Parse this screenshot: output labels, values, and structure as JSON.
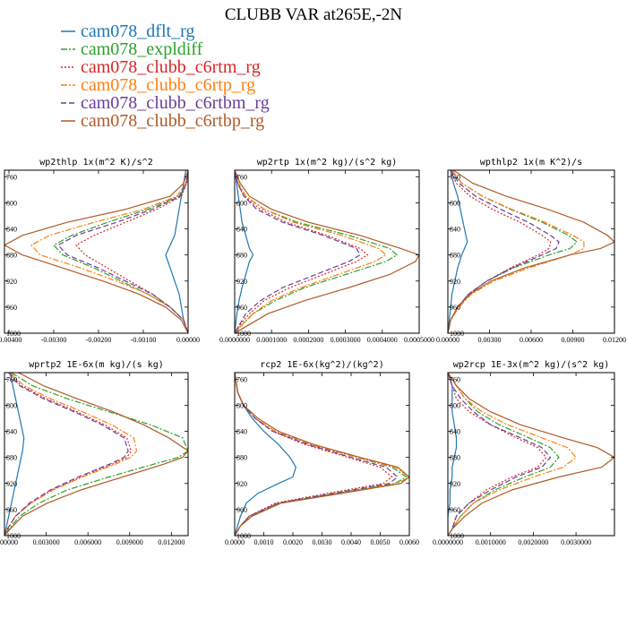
{
  "figure": {
    "title": "CLUBB VAR at265E,-2N"
  },
  "colors": {
    "dflt": "#1f77b4",
    "expldiff": "#2ca02c",
    "c6rtm": "#d62728",
    "c6rtp": "#ff7f0e",
    "c6rtbm": "#6a3d9a",
    "c6rtbp": "#b05a28"
  },
  "legend": [
    {
      "label": "cam078_dflt_rg",
      "color": "#1f77b4",
      "dash": "solid"
    },
    {
      "label": "cam078_expldiff",
      "color": "#2ca02c",
      "dash": "dashdot"
    },
    {
      "label": "cam078_clubb_c6rtm_rg",
      "color": "#d62728",
      "dash": "dotted"
    },
    {
      "label": "cam078_clubb_c6rtp_rg",
      "color": "#ff7f0e",
      "dash": "dashdot"
    },
    {
      "label": "cam078_clubb_c6rtbm_rg",
      "color": "#6a3d9a",
      "dash": "dashed"
    },
    {
      "label": "cam078_clubb_c6rtbp_rg",
      "color": "#b05a28",
      "dash": "solid"
    }
  ],
  "chart_data": [
    {
      "type": "line",
      "title": "wp2thlp  1x(m^2 K)/s^2",
      "xlim": [
        -0.0041,
        0.0
      ],
      "ylim": [
        1000,
        750
      ],
      "yticks": [
        760,
        800,
        840,
        880,
        920,
        960,
        1000
      ],
      "xticks": [
        -0.004,
        -0.003,
        -0.002,
        -0.001,
        0.0
      ],
      "xtick_labels": [
        "-0.00400",
        "-0.00300",
        "-0.00200",
        "-0.00100",
        "0.00000"
      ],
      "y": [
        750,
        770,
        790,
        810,
        830,
        850,
        865,
        880,
        900,
        920,
        940,
        960,
        980,
        1000
      ],
      "series": [
        {
          "name": "cam078_dflt_rg",
          "x": [
            -5e-05,
            -0.0001,
            -0.00015,
            -0.0002,
            -0.00025,
            -0.0003,
            -0.0004,
            -0.0005,
            -0.0004,
            -0.0003,
            -0.0002,
            -0.00015,
            -0.0001,
            0.0
          ]
        },
        {
          "name": "cam078_expldiff",
          "x": [
            0.0,
            -5e-05,
            -0.0002,
            -0.0009,
            -0.0018,
            -0.0026,
            -0.003,
            -0.0028,
            -0.0021,
            -0.0015,
            -0.0009,
            -0.0004,
            -0.0001,
            0.0
          ]
        },
        {
          "name": "cam078_clubb_c6rtm_rg",
          "x": [
            0.0,
            -3e-05,
            -0.00015,
            -0.0007,
            -0.0014,
            -0.0021,
            -0.0025,
            -0.0023,
            -0.0018,
            -0.0013,
            -0.0008,
            -0.0004,
            -0.0001,
            0.0
          ]
        },
        {
          "name": "cam078_clubb_c6rtp_rg",
          "x": [
            0.0,
            -5e-05,
            -0.00025,
            -0.001,
            -0.0021,
            -0.0031,
            -0.0035,
            -0.0033,
            -0.0024,
            -0.0016,
            -0.0009,
            -0.0004,
            -0.0001,
            0.0
          ]
        },
        {
          "name": "cam078_clubb_c6rtbm_rg",
          "x": [
            0.0,
            -4e-05,
            -0.00018,
            -0.0008,
            -0.0016,
            -0.0025,
            -0.0029,
            -0.0027,
            -0.002,
            -0.0014,
            -0.0008,
            -0.0004,
            -0.0001,
            0.0
          ]
        },
        {
          "name": "cam078_clubb_c6rtbp_rg",
          "x": [
            0.0,
            -0.0001,
            -0.0004,
            -0.0014,
            -0.0027,
            -0.0037,
            -0.0041,
            -0.0037,
            -0.0028,
            -0.0019,
            -0.0011,
            -0.0005,
            -0.00015,
            0.0
          ]
        }
      ]
    },
    {
      "type": "line",
      "title": "wp2rtp  1x(m^2 kg)/(s^2 kg)",
      "xlim": [
        0.0,
        0.0005
      ],
      "ylim": [
        1000,
        750
      ],
      "yticks": [
        760,
        800,
        840,
        880,
        920,
        960,
        1000
      ],
      "xticks": [
        0.0,
        0.0001,
        0.0002,
        0.0003,
        0.0004,
        0.0005
      ],
      "xtick_labels": [
        "0.0000000",
        "0.0001000",
        "0.0002000",
        "0.0003000",
        "0.0004000",
        "0.0005000"
      ],
      "y": [
        750,
        770,
        790,
        810,
        830,
        850,
        870,
        880,
        890,
        910,
        930,
        950,
        970,
        990,
        1000
      ],
      "series": [
        {
          "name": "cam078_dflt_rg",
          "x": [
            0.0,
            5e-06,
            1e-05,
            1.5e-05,
            2e-05,
            3e-05,
            4e-05,
            5e-05,
            4e-05,
            3e-05,
            2e-05,
            1.2e-05,
            6e-06,
            2e-06,
            0.0
          ]
        },
        {
          "name": "cam078_expldiff",
          "x": [
            0.0,
            1e-05,
            3e-05,
            8e-05,
            0.00017,
            0.00031,
            0.00042,
            0.00044,
            0.00041,
            0.0003,
            0.00019,
            0.00011,
            5e-05,
            1.5e-05,
            0.0
          ]
        },
        {
          "name": "cam078_clubb_c6rtm_rg",
          "x": [
            0.0,
            8e-06,
            2.5e-05,
            7e-05,
            0.00014,
            0.00025,
            0.00034,
            0.00036,
            0.00033,
            0.00024,
            0.00015,
            8e-05,
            4e-05,
            1e-05,
            0.0
          ]
        },
        {
          "name": "cam078_clubb_c6rtp_rg",
          "x": [
            0.0,
            1e-05,
            3e-05,
            8e-05,
            0.00016,
            0.00029,
            0.00039,
            0.00041,
            0.00038,
            0.00028,
            0.00018,
            0.0001,
            5e-05,
            1.5e-05,
            0.0
          ]
        },
        {
          "name": "cam078_clubb_c6rtbm_rg",
          "x": [
            0.0,
            8e-06,
            2.5e-05,
            6e-05,
            0.00013,
            0.00024,
            0.00033,
            0.00034,
            0.00031,
            0.00022,
            0.00013,
            7e-05,
            3e-05,
            1e-05,
            0.0
          ]
        },
        {
          "name": "cam078_clubb_c6rtbp_rg",
          "x": [
            0.0,
            1.5e-05,
            4e-05,
            0.0001,
            0.0002,
            0.00034,
            0.00045,
            0.0005,
            0.00049,
            0.00042,
            0.00031,
            0.00019,
            9e-05,
            3e-05,
            0.0
          ]
        }
      ]
    },
    {
      "type": "line",
      "title": "wpthlp2  1x(m K^2)/s",
      "xlim": [
        0.0,
        0.012
      ],
      "ylim": [
        1000,
        750
      ],
      "yticks": [
        760,
        800,
        840,
        880,
        920,
        960,
        1000
      ],
      "xticks": [
        0.0,
        0.003,
        0.006,
        0.009,
        0.012
      ],
      "xtick_labels": [
        "0.00000",
        "0.00300",
        "0.00600",
        "0.00900",
        "0.01200"
      ],
      "y": [
        750,
        770,
        790,
        810,
        830,
        850,
        860,
        870,
        880,
        900,
        920,
        940,
        960,
        980,
        1000
      ],
      "series": [
        {
          "name": "cam078_dflt_rg",
          "x": [
            0.0002,
            0.0004,
            0.0007,
            0.0009,
            0.0011,
            0.0013,
            0.0014,
            0.0012,
            0.001,
            0.0007,
            0.0005,
            0.0003,
            0.0002,
            0.0001,
            0.0
          ]
        },
        {
          "name": "cam078_expldiff",
          "x": [
            0.0003,
            0.001,
            0.0025,
            0.0045,
            0.0068,
            0.0087,
            0.0093,
            0.0088,
            0.0073,
            0.0047,
            0.0028,
            0.0015,
            0.0007,
            0.0002,
            0.0
          ]
        },
        {
          "name": "cam078_clubb_c6rtm_rg",
          "x": [
            0.0002,
            0.0006,
            0.0016,
            0.0032,
            0.0052,
            0.0068,
            0.0074,
            0.0073,
            0.0065,
            0.0045,
            0.0028,
            0.0015,
            0.0007,
            0.0002,
            0.0
          ]
        },
        {
          "name": "cam078_clubb_c6rtp_rg",
          "x": [
            0.0003,
            0.001,
            0.0025,
            0.0046,
            0.007,
            0.009,
            0.0098,
            0.0098,
            0.0088,
            0.0058,
            0.0033,
            0.0017,
            0.0008,
            0.0002,
            0.0
          ]
        },
        {
          "name": "cam078_clubb_c6rtbm_rg",
          "x": [
            0.0002,
            0.0008,
            0.002,
            0.0038,
            0.0058,
            0.0074,
            0.008,
            0.0078,
            0.0068,
            0.0046,
            0.0028,
            0.0015,
            0.0007,
            0.0002,
            0.0
          ]
        },
        {
          "name": "cam078_clubb_c6rtbp_rg",
          "x": [
            0.0004,
            0.0018,
            0.0042,
            0.0072,
            0.0098,
            0.0115,
            0.012,
            0.011,
            0.0088,
            0.0055,
            0.0031,
            0.0016,
            0.0007,
            0.0002,
            0.0
          ]
        }
      ]
    },
    {
      "type": "line",
      "title": "wprtp2  1E-6x(m kg)/(s kg)",
      "xlim": [
        0.0,
        0.0132
      ],
      "ylim": [
        1000,
        750
      ],
      "yticks": [
        760,
        800,
        840,
        880,
        920,
        960,
        1000
      ],
      "xticks": [
        0.0,
        0.003,
        0.006,
        0.009,
        0.012
      ],
      "xtick_labels": [
        "0.000000",
        "0.003000",
        "0.006000",
        "0.009000",
        "0.012000"
      ],
      "y": [
        750,
        770,
        790,
        810,
        830,
        850,
        870,
        880,
        890,
        910,
        930,
        950,
        970,
        990,
        1000
      ],
      "series": [
        {
          "name": "cam078_dflt_rg",
          "x": [
            0.0004,
            0.0006,
            0.0008,
            0.001,
            0.0012,
            0.0014,
            0.0013,
            0.0012,
            0.0011,
            0.0009,
            0.0007,
            0.0005,
            0.0003,
            0.0001,
            0.0
          ]
        },
        {
          "name": "cam078_expldiff",
          "x": [
            0.0005,
            0.002,
            0.0045,
            0.0075,
            0.0105,
            0.0128,
            0.0132,
            0.0125,
            0.0108,
            0.0075,
            0.0045,
            0.0025,
            0.0011,
            0.0003,
            0.0
          ]
        },
        {
          "name": "cam078_clubb_c6rtm_rg",
          "x": [
            0.0003,
            0.0012,
            0.003,
            0.0052,
            0.0072,
            0.0088,
            0.0091,
            0.0088,
            0.0078,
            0.0055,
            0.0034,
            0.0019,
            0.0008,
            0.0002,
            0.0
          ]
        },
        {
          "name": "cam078_clubb_c6rtp_rg",
          "x": [
            0.0004,
            0.0014,
            0.0033,
            0.0056,
            0.0077,
            0.0093,
            0.0095,
            0.0091,
            0.008,
            0.0056,
            0.0035,
            0.0019,
            0.0008,
            0.0002,
            0.0
          ]
        },
        {
          "name": "cam078_clubb_c6rtbm_rg",
          "x": [
            0.0003,
            0.0011,
            0.0028,
            0.005,
            0.007,
            0.0086,
            0.0089,
            0.0086,
            0.0076,
            0.0053,
            0.0033,
            0.0018,
            0.0008,
            0.0002,
            0.0
          ]
        },
        {
          "name": "cam078_clubb_c6rtbp_rg",
          "x": [
            0.001,
            0.0028,
            0.0052,
            0.0078,
            0.01,
            0.0118,
            0.0132,
            0.0128,
            0.0115,
            0.0085,
            0.0055,
            0.0031,
            0.0013,
            0.0004,
            0.0
          ]
        }
      ]
    },
    {
      "type": "line",
      "title": "rcp2  1E-6x(kg^2)/(kg^2)",
      "xlim": [
        0.0,
        0.006
      ],
      "ylim": [
        1000,
        750
      ],
      "yticks": [
        760,
        800,
        840,
        880,
        920,
        960,
        1000
      ],
      "xticks": [
        0.0,
        0.001,
        0.002,
        0.003,
        0.004,
        0.005,
        0.006
      ],
      "xtick_labels": [
        "0.0000",
        "0.0010",
        "0.0020",
        "0.0030",
        "0.0040",
        "0.0050",
        "0.0060"
      ],
      "y": [
        750,
        780,
        800,
        820,
        840,
        860,
        880,
        895,
        910,
        920,
        935,
        950,
        970,
        985,
        1000
      ],
      "series": [
        {
          "name": "cam078_dflt_rg",
          "x": [
            0.0,
            0.0001,
            0.0003,
            0.0006,
            0.001,
            0.0015,
            0.0019,
            0.0021,
            0.002,
            0.0015,
            0.0008,
            0.0004,
            0.0002,
            0.0001,
            0.0
          ]
        },
        {
          "name": "cam078_expldiff",
          "x": [
            0.0,
            0.0001,
            0.0003,
            0.0007,
            0.0014,
            0.0026,
            0.0042,
            0.0054,
            0.0059,
            0.0055,
            0.0035,
            0.0015,
            0.0005,
            0.0002,
            0.0
          ]
        },
        {
          "name": "cam078_clubb_c6rtm_rg",
          "x": [
            0.0,
            0.0001,
            0.0003,
            0.0007,
            0.0013,
            0.0024,
            0.0039,
            0.005,
            0.0054,
            0.0051,
            0.0032,
            0.0014,
            0.0005,
            0.0002,
            0.0
          ]
        },
        {
          "name": "cam078_clubb_c6rtp_rg",
          "x": [
            0.0,
            0.0001,
            0.0003,
            0.0007,
            0.0014,
            0.0026,
            0.0042,
            0.0055,
            0.006,
            0.0056,
            0.0036,
            0.0016,
            0.0006,
            0.0002,
            0.0
          ]
        },
        {
          "name": "cam078_clubb_c6rtbm_rg",
          "x": [
            0.0,
            0.0001,
            0.0003,
            0.0007,
            0.0013,
            0.0025,
            0.004,
            0.0052,
            0.0056,
            0.0053,
            0.0034,
            0.0015,
            0.0005,
            0.0002,
            0.0
          ]
        },
        {
          "name": "cam078_clubb_c6rtbp_rg",
          "x": [
            0.0,
            0.0001,
            0.0003,
            0.0008,
            0.0015,
            0.0027,
            0.0043,
            0.0056,
            0.006,
            0.0057,
            0.0037,
            0.0016,
            0.0006,
            0.0002,
            0.0
          ]
        }
      ]
    },
    {
      "type": "line",
      "title": "wp2rcp  1E-3x(m^2 kg)/(s^2 kg)",
      "xlim": [
        0.0,
        0.0039
      ],
      "ylim": [
        1000,
        750
      ],
      "yticks": [
        760,
        800,
        840,
        880,
        920,
        960,
        1000
      ],
      "xticks": [
        0.0,
        0.001,
        0.002,
        0.003
      ],
      "xtick_labels": [
        "0.0000000",
        "0.0010000",
        "0.0020000",
        "0.0030000"
      ],
      "y": [
        750,
        770,
        790,
        810,
        830,
        850,
        865,
        880,
        895,
        910,
        930,
        950,
        970,
        990,
        1000
      ],
      "series": [
        {
          "name": "cam078_dflt_rg",
          "x": [
            0.0,
            0.0001,
            0.0001,
            0.0001,
            0.00015,
            0.0002,
            0.0002,
            0.00015,
            0.0001,
            0.0001,
            5e-05,
            5e-05,
            0.0,
            0.0,
            0.0
          ]
        },
        {
          "name": "cam078_expldiff",
          "x": [
            0.0,
            0.0002,
            0.0004,
            0.0007,
            0.0012,
            0.0019,
            0.0024,
            0.0026,
            0.0024,
            0.0018,
            0.0011,
            0.0006,
            0.0003,
            0.0001,
            0.0
          ]
        },
        {
          "name": "cam078_clubb_c6rtm_rg",
          "x": [
            0.0,
            0.0001,
            0.0002,
            0.0005,
            0.001,
            0.0016,
            0.0021,
            0.0023,
            0.0021,
            0.0015,
            0.0009,
            0.0005,
            0.0002,
            0.0001,
            0.0
          ]
        },
        {
          "name": "cam078_clubb_c6rtp_rg",
          "x": [
            0.0,
            0.0002,
            0.0004,
            0.0008,
            0.0014,
            0.0022,
            0.0028,
            0.003,
            0.0027,
            0.002,
            0.0012,
            0.0006,
            0.0003,
            0.0001,
            0.0
          ]
        },
        {
          "name": "cam078_clubb_c6rtbm_rg",
          "x": [
            0.0,
            0.0001,
            0.0003,
            0.0006,
            0.001,
            0.0017,
            0.0022,
            0.0024,
            0.0022,
            0.0016,
            0.001,
            0.0005,
            0.0002,
            0.0001,
            0.0
          ]
        },
        {
          "name": "cam078_clubb_c6rtbp_rg",
          "x": [
            0.0,
            0.0002,
            0.0005,
            0.001,
            0.0017,
            0.0027,
            0.0035,
            0.0039,
            0.0036,
            0.0026,
            0.0015,
            0.0008,
            0.0004,
            0.0001,
            0.0
          ]
        }
      ]
    }
  ]
}
